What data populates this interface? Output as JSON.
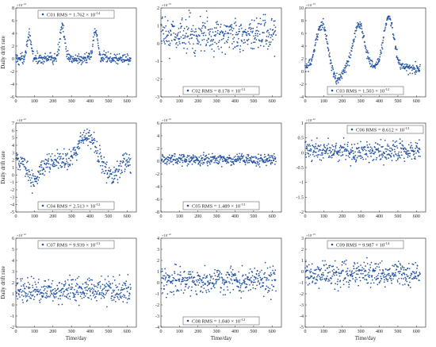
{
  "chart_data": [
    {
      "type": "scatter",
      "series": [
        {
          "name": "C01",
          "rms_mantissa": "1.762",
          "rms_exp": "-14"
        }
      ],
      "ylabel": "Daily drift rate",
      "xlabel": "",
      "y_multiplier_exp": "-14",
      "ylim": [
        -6,
        8
      ],
      "yticks": [
        "-6",
        "-4",
        "-2",
        "0",
        "2",
        "4",
        "6",
        "8"
      ],
      "xlim": [
        0,
        650
      ],
      "xticks": [
        "0",
        "100",
        "200",
        "300",
        "400",
        "500",
        "600"
      ],
      "legend": "top-center",
      "pattern": {
        "base": 0,
        "noise": 0.9,
        "peaks": [
          [
            70,
            3.5,
            12
          ],
          [
            250,
            5.5,
            12
          ],
          [
            430,
            4.5,
            12
          ]
        ]
      }
    },
    {
      "type": "scatter",
      "series": [
        {
          "name": "C02",
          "rms_mantissa": "8.178",
          "rms_exp": "-13"
        }
      ],
      "ylabel": "",
      "xlabel": "",
      "y_multiplier_exp": "-13",
      "ylim": [
        -3,
        2
      ],
      "yticks": [
        "-3",
        "-2",
        "-1",
        "0",
        "1",
        "2"
      ],
      "xlim": [
        0,
        650
      ],
      "xticks": [
        "0",
        "100",
        "200",
        "300",
        "400",
        "500",
        "600"
      ],
      "legend": "bottom-center",
      "pattern": {
        "base": 0.5,
        "noise": 1.0,
        "peaks": []
      }
    },
    {
      "type": "scatter",
      "series": [
        {
          "name": "C03",
          "rms_mantissa": "1.503",
          "rms_exp": "-12"
        }
      ],
      "ylabel": "",
      "xlabel": "",
      "y_multiplier_exp": "-13",
      "ylim": [
        -4,
        10
      ],
      "yticks": [
        "-4",
        "-2",
        "0",
        "2",
        "4",
        "6",
        "8",
        "10"
      ],
      "xlim": [
        0,
        650
      ],
      "xticks": [
        "0",
        "100",
        "200",
        "300",
        "400",
        "500",
        "600"
      ],
      "legend": "bottom-center",
      "pattern": {
        "base": 0.5,
        "noise": 0.8,
        "peaks": [
          [
            90,
            7,
            30
          ],
          [
            290,
            7,
            30
          ],
          [
            450,
            8,
            28
          ]
        ],
        "dips": [
          [
            170,
            -2,
            25
          ]
        ]
      }
    },
    {
      "type": "scatter",
      "series": [
        {
          "name": "C04",
          "rms_mantissa": "2.513",
          "rms_exp": "-12"
        }
      ],
      "ylabel": "Daily drift rate",
      "xlabel": "",
      "y_multiplier_exp": "-12",
      "ylim": [
        -5,
        7
      ],
      "yticks": [
        "-5",
        "-4",
        "-3",
        "-2",
        "-1",
        "0",
        "1",
        "2",
        "3",
        "4",
        "5",
        "6",
        "7"
      ],
      "xlim": [
        0,
        650
      ],
      "xticks": [
        "0",
        "100",
        "200",
        "300",
        "400",
        "500",
        "600"
      ],
      "legend": "bottom-center",
      "pattern": {
        "base": 1.8,
        "noise": 1.4,
        "peaks": [
          [
            380,
            3.5,
            40
          ]
        ],
        "dips": [
          [
            100,
            -2.5,
            30
          ],
          [
            520,
            -2,
            30
          ]
        ]
      }
    },
    {
      "type": "scatter",
      "series": [
        {
          "name": "C05",
          "rms_mantissa": "1.489",
          "rms_exp": "-13"
        }
      ],
      "ylabel": "",
      "xlabel": "",
      "y_multiplier_exp": "-13",
      "ylim": [
        -8,
        6
      ],
      "yticks": [
        "-8",
        "-6",
        "-4",
        "-2",
        "0",
        "2",
        "4",
        "6"
      ],
      "xlim": [
        0,
        650
      ],
      "xticks": [
        "0",
        "100",
        "200",
        "300",
        "400",
        "500",
        "600"
      ],
      "legend": "bottom-center",
      "pattern": {
        "base": 0.3,
        "noise": 0.9,
        "peaks": [],
        "dips": []
      }
    },
    {
      "type": "scatter",
      "series": [
        {
          "name": "C06",
          "rms_mantissa": "8.612",
          "rms_exp": "-13"
        }
      ],
      "ylabel": "",
      "xlabel": "",
      "y_multiplier_exp": "-12",
      "ylim": [
        -2,
        1
      ],
      "yticks": [
        "-2",
        "-1.5",
        "-1",
        "-0.5",
        "0",
        "0.5",
        "1"
      ],
      "xlim": [
        0,
        650
      ],
      "xticks": [
        "0",
        "100",
        "200",
        "300",
        "400",
        "500",
        "600"
      ],
      "legend": "top-right",
      "pattern": {
        "base": 0.05,
        "noise": 0.35,
        "peaks": [],
        "dips": []
      }
    },
    {
      "type": "scatter",
      "series": [
        {
          "name": "C07",
          "rms_mantissa": "9.939",
          "rms_exp": "-13"
        }
      ],
      "ylabel": "Daily drift rate",
      "xlabel": "Time/day",
      "y_multiplier_exp": "-12",
      "ylim": [
        -2,
        6
      ],
      "yticks": [
        "-2",
        "-1",
        "0",
        "1",
        "2",
        "3",
        "4",
        "5",
        "6"
      ],
      "xlim": [
        0,
        650
      ],
      "xticks": [
        "0",
        "100",
        "200",
        "300",
        "400",
        "500",
        "600"
      ],
      "legend": "top-center",
      "pattern": {
        "base": 1.3,
        "noise": 1.1,
        "peaks": [],
        "dips": []
      }
    },
    {
      "type": "scatter",
      "series": [
        {
          "name": "C08",
          "rms_mantissa": "1.040",
          "rms_exp": "-12"
        }
      ],
      "ylabel": "",
      "xlabel": "Time/day",
      "y_multiplier_exp": "-12",
      "ylim": [
        -4,
        4
      ],
      "yticks": [
        "-4",
        "-3",
        "-2",
        "-1",
        "0",
        "1",
        "2",
        "3",
        "4"
      ],
      "xlim": [
        0,
        650
      ],
      "xticks": [
        "0",
        "100",
        "200",
        "300",
        "400",
        "500",
        "600"
      ],
      "legend": "bottom-center",
      "pattern": {
        "base": 0.2,
        "noise": 1.3,
        "peaks": [],
        "dips": []
      }
    },
    {
      "type": "scatter",
      "series": [
        {
          "name": "C09",
          "rms_mantissa": "9.987",
          "rms_exp": "-14"
        }
      ],
      "ylabel": "",
      "xlabel": "Time/day",
      "y_multiplier_exp": "-13",
      "ylim": [
        -5,
        3
      ],
      "yticks": [
        "-5",
        "-4",
        "-3",
        "-2",
        "-1",
        "0",
        "1",
        "2",
        "3"
      ],
      "xlim": [
        0,
        650
      ],
      "xticks": [
        "0",
        "100",
        "200",
        "300",
        "400",
        "500",
        "600"
      ],
      "legend": "top-center",
      "pattern": {
        "base": -0.2,
        "noise": 1.1,
        "peaks": [],
        "dips": []
      }
    }
  ],
  "colors": {
    "marker": "#1f4fa0",
    "axis": "#222222",
    "legend_border": "#444444"
  }
}
